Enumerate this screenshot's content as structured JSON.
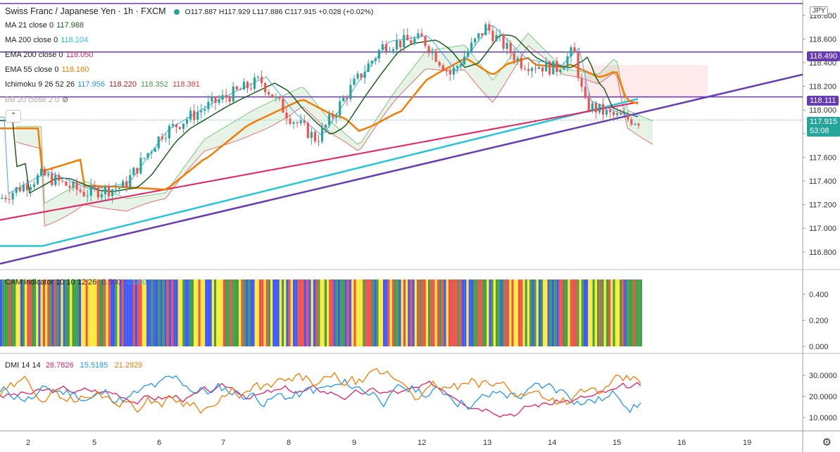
{
  "header": {
    "title": "Swiss Franc / Japanese Yen · 1h · FXCM",
    "ohlc": "O117.887  H117.929  L117.886  C117.915  +0.028 (+0.02%)"
  },
  "currency_badge": "JPY",
  "indicators": [
    {
      "label": "MA 21 close 0",
      "values": [
        {
          "text": "117.988",
          "color": "#1b5e20"
        }
      ]
    },
    {
      "label": "MA 200 close 0",
      "values": [
        {
          "text": "118.104",
          "color": "#26c6da"
        }
      ]
    },
    {
      "label": "EMA 200 close 0",
      "values": [
        {
          "text": "118.050",
          "color": "#e91e63"
        }
      ]
    },
    {
      "label": "EMA 55 close 0",
      "values": [
        {
          "text": "118.160",
          "color": "#f57c00"
        }
      ]
    },
    {
      "label": "Ichimoku 9 26 52 26",
      "values": [
        {
          "text": "117.956",
          "color": "#2196f3"
        },
        {
          "text": "118.220",
          "color": "#b71c1c"
        },
        {
          "text": "118.352",
          "color": "#43a047"
        },
        {
          "text": "118.381",
          "color": "#e53935"
        }
      ]
    },
    {
      "label": "BB 20 close 2 0",
      "values": []
    }
  ],
  "cam_indicator": {
    "label": "CAM indicator 10 10 12 26",
    "values": [
      {
        "text": "0.500",
        "color": "#7b1fa2"
      },
      {
        "text": "0.000",
        "color": "#29b6f6"
      }
    ]
  },
  "dmi": {
    "label": "DMI 14 14",
    "values": [
      {
        "text": "28.7826",
        "color": "#e91e63"
      },
      {
        "text": "15.5185",
        "color": "#2196f3"
      },
      {
        "text": "21.2929",
        "color": "#f57c00"
      }
    ]
  },
  "price_labels": {
    "current": "117.915",
    "countdown": "53:08",
    "level_118490": "118.490",
    "level_118111": "118.111"
  },
  "chart_data": {
    "type": "candlestick",
    "symbol": "CHFJPY",
    "timeframe": "1h",
    "x_ticks": [
      "2",
      "5",
      "6",
      "7",
      "8",
      "9",
      "12",
      "13",
      "14",
      "15",
      "16",
      "19"
    ],
    "y_ticks": [
      "118.800",
      "118.600",
      "118.400",
      "118.200",
      "118.000",
      "117.800",
      "117.600",
      "117.400",
      "117.200",
      "117.000",
      "116.800"
    ],
    "ylim": [
      116.65,
      118.93
    ],
    "horizontal_levels": [
      118.9,
      118.49,
      118.111
    ],
    "trendline": {
      "from": [
        0,
        116.7
      ],
      "to": [
        1.0,
        118.3
      ]
    },
    "cam_ticks": [
      "0.400",
      "0.200",
      "0.000"
    ],
    "dmi_ticks": [
      "30.0000",
      "20.0000",
      "10.0000"
    ],
    "dmi_ylim": [
      5,
      37
    ],
    "last_close": 117.915,
    "colors": {
      "up": "#26a69a",
      "down": "#ef5350",
      "ma21": "#1b5e20",
      "ma200": "#26c6da",
      "ema200": "#e91e63",
      "ema55": "#f57c00",
      "trendline": "#673ab7",
      "levels": "#673ab7"
    }
  }
}
